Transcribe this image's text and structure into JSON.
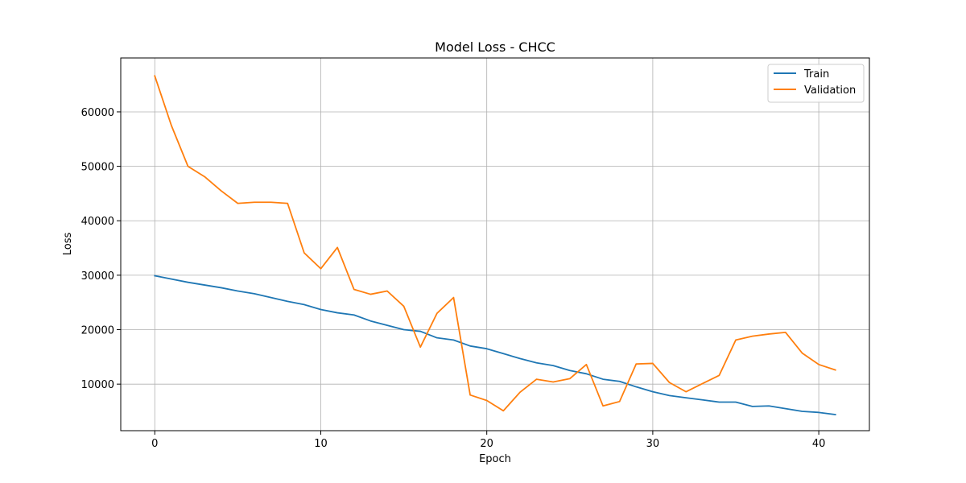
{
  "chart_data": {
    "type": "line",
    "title": "Model Loss - CHCC",
    "xlabel": "Epoch",
    "ylabel": "Loss",
    "xlim": [
      -2.05,
      43.05
    ],
    "ylim": [
      1450,
      69900
    ],
    "xticks": [
      0,
      10,
      20,
      30,
      40
    ],
    "yticks": [
      10000,
      20000,
      30000,
      40000,
      50000,
      60000
    ],
    "grid": true,
    "legend_position": "top-right",
    "x": [
      0,
      1,
      2,
      3,
      4,
      5,
      6,
      7,
      8,
      9,
      10,
      11,
      12,
      13,
      14,
      15,
      16,
      17,
      18,
      19,
      20,
      21,
      22,
      23,
      24,
      25,
      26,
      27,
      28,
      29,
      30,
      31,
      32,
      33,
      34,
      35,
      36,
      37,
      38,
      39,
      40,
      41
    ],
    "series": [
      {
        "name": "Train",
        "color": "#1f77b4",
        "values": [
          29900,
          29300,
          28700,
          28200,
          27700,
          27100,
          26600,
          25900,
          25200,
          24600,
          23700,
          23100,
          22700,
          21600,
          20800,
          20000,
          19700,
          18500,
          18100,
          17000,
          16500,
          15600,
          14700,
          13900,
          13400,
          12500,
          11900,
          10900,
          10500,
          9500,
          8600,
          7900,
          7500,
          7100,
          6700,
          6700,
          5900,
          6000,
          5500,
          5000,
          4800,
          4400
        ]
      },
      {
        "name": "Validation",
        "color": "#ff7f0e",
        "values": [
          66600,
          57500,
          50000,
          48100,
          45500,
          43200,
          43400,
          43400,
          43200,
          34100,
          31200,
          35100,
          27400,
          26500,
          27100,
          24300,
          16800,
          23000,
          25900,
          8000,
          7000,
          5100,
          8500,
          10900,
          10400,
          11000,
          13600,
          6000,
          6800,
          13700,
          13800,
          10300,
          8600,
          10100,
          11600,
          18100,
          18800,
          19200,
          19500,
          15700,
          13600,
          12600
        ]
      }
    ]
  }
}
